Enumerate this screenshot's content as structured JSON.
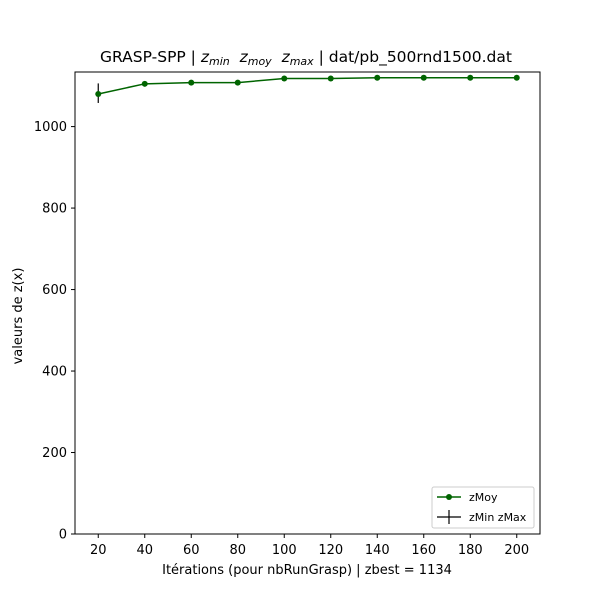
{
  "chart_data": {
    "type": "line",
    "title": {
      "prefix": "GRASP-SPP | ",
      "zmin_base": "z",
      "zmin_sub": "min",
      "zmoy_base": "z",
      "zmoy_sub": "moy",
      "zmax_base": "z",
      "zmax_sub": "max",
      "suffix": " | dat/pb_500rnd1500.dat"
    },
    "xlabel": "Itérations (pour nbRunGrasp) | zbest = 1134",
    "ylabel": "valeurs de z(x)",
    "xlim": [
      10,
      210
    ],
    "ylim": [
      0,
      1134
    ],
    "x_ticks": [
      20,
      40,
      60,
      80,
      100,
      120,
      140,
      160,
      180,
      200
    ],
    "y_ticks": [
      0,
      200,
      400,
      600,
      800,
      1000
    ],
    "grid": false,
    "legend_position": "lower right",
    "series": [
      {
        "name": "zMoy",
        "color": "#006400",
        "marker": "circle",
        "x": [
          20,
          40,
          60,
          80,
          100,
          120,
          140,
          160,
          180,
          200
        ],
        "y": [
          1080,
          1105,
          1108,
          1108,
          1118,
          1118,
          1120,
          1120,
          1120,
          1120
        ]
      },
      {
        "name": "zMin zMax",
        "color": "#000000",
        "x": [
          20,
          40,
          60,
          80,
          100,
          120,
          140,
          160,
          180,
          200
        ],
        "ymin": [
          1058,
          1103,
          1106,
          1106,
          1116,
          1116,
          1118,
          1118,
          1118,
          1118
        ],
        "ymax": [
          1106,
          1107,
          1110,
          1110,
          1120,
          1120,
          1122,
          1122,
          1122,
          1122
        ]
      }
    ]
  }
}
